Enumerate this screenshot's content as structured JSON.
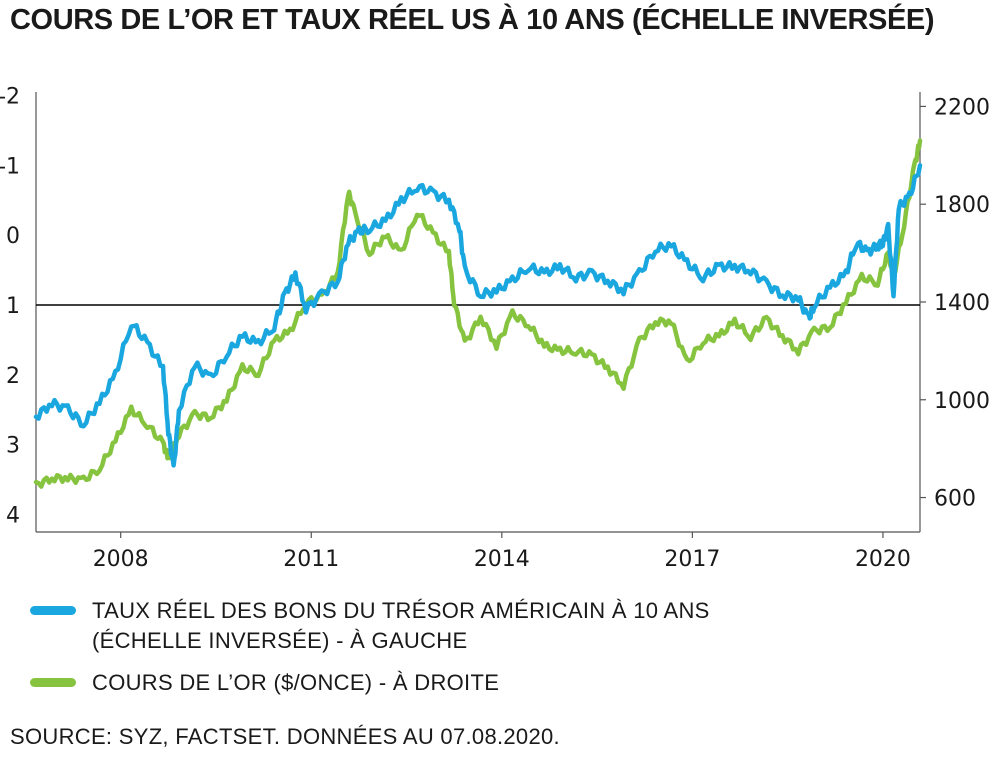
{
  "chart_data": {
    "type": "line",
    "title": "COURS DE L’OR ET TAUX RÉEL US À 10 ANS (ÉCHELLE INVERSÉE)",
    "x_ticks": [
      "2008",
      "2011",
      "2014",
      "2017",
      "2020"
    ],
    "x_range": [
      "2006-09",
      "2020-08"
    ],
    "left_axis": {
      "ticks": [
        "-2",
        "-1",
        "0",
        "1",
        "2",
        "3",
        "4"
      ],
      "range": [
        4.25,
        -2.05
      ],
      "inverted": true
    },
    "right_axis": {
      "ticks": [
        "2200",
        "1800",
        "1400",
        "1000",
        "600"
      ],
      "range": [
        459,
        2259
      ]
    },
    "reference_line": {
      "axis": "left",
      "value": 1,
      "color": "#000000"
    },
    "series": [
      {
        "name": "TAUX RÉEL DES BONS DU TRÉSOR AMÉRICAIN À 10 ANS (ÉCHELLE INVERSÉE) - À GAUCHE",
        "axis": "left",
        "color": "#1aa7e0",
        "points": [
          [
            "2006-09",
            2.6
          ],
          [
            "2006-12",
            2.4
          ],
          [
            "2007-03",
            2.5
          ],
          [
            "2007-06",
            2.7
          ],
          [
            "2007-09",
            2.4
          ],
          [
            "2007-12",
            2.0
          ],
          [
            "2008-03",
            1.25
          ],
          [
            "2008-06",
            1.55
          ],
          [
            "2008-09",
            1.9
          ],
          [
            "2008-10",
            2.8
          ],
          [
            "2008-11",
            3.35
          ],
          [
            "2008-12",
            2.5
          ],
          [
            "2009-03",
            1.85
          ],
          [
            "2009-06",
            2.05
          ],
          [
            "2009-09",
            1.7
          ],
          [
            "2009-12",
            1.45
          ],
          [
            "2010-03",
            1.55
          ],
          [
            "2010-06",
            1.3
          ],
          [
            "2010-08",
            0.85
          ],
          [
            "2010-10",
            0.55
          ],
          [
            "2010-12",
            1.05
          ],
          [
            "2011-03",
            0.85
          ],
          [
            "2011-06",
            0.65
          ],
          [
            "2011-08",
            0.1
          ],
          [
            "2011-10",
            -0.05
          ],
          [
            "2011-12",
            -0.1
          ],
          [
            "2012-03",
            -0.2
          ],
          [
            "2012-06",
            -0.5
          ],
          [
            "2012-09",
            -0.7
          ],
          [
            "2012-12",
            -0.6
          ],
          [
            "2013-03",
            -0.5
          ],
          [
            "2013-05",
            -0.1
          ],
          [
            "2013-06",
            0.5
          ],
          [
            "2013-09",
            0.85
          ],
          [
            "2013-12",
            0.8
          ],
          [
            "2014-03",
            0.65
          ],
          [
            "2014-06",
            0.45
          ],
          [
            "2014-09",
            0.55
          ],
          [
            "2014-12",
            0.45
          ],
          [
            "2015-03",
            0.6
          ],
          [
            "2015-06",
            0.55
          ],
          [
            "2015-09",
            0.65
          ],
          [
            "2015-12",
            0.8
          ],
          [
            "2016-03",
            0.55
          ],
          [
            "2016-06",
            0.2
          ],
          [
            "2016-09",
            0.15
          ],
          [
            "2016-12",
            0.4
          ],
          [
            "2017-03",
            0.6
          ],
          [
            "2017-06",
            0.45
          ],
          [
            "2017-09",
            0.45
          ],
          [
            "2017-12",
            0.5
          ],
          [
            "2018-03",
            0.7
          ],
          [
            "2018-06",
            0.85
          ],
          [
            "2018-09",
            0.9
          ],
          [
            "2018-11",
            1.2
          ],
          [
            "2018-12",
            1.0
          ],
          [
            "2019-03",
            0.75
          ],
          [
            "2019-06",
            0.55
          ],
          [
            "2019-08",
            0.1
          ],
          [
            "2019-10",
            0.25
          ],
          [
            "2019-12",
            0.15
          ],
          [
            "2020-01",
            0.1
          ],
          [
            "2020-02",
            -0.1
          ],
          [
            "2020-03",
            0.85
          ],
          [
            "2020-04",
            -0.4
          ],
          [
            "2020-06",
            -0.55
          ],
          [
            "2020-08",
            -1.0
          ]
        ]
      },
      {
        "name": "COURS DE L’OR ($/ONCE) - À DROITE",
        "axis": "right",
        "color": "#86c440",
        "points": [
          [
            "2006-09",
            650
          ],
          [
            "2006-12",
            680
          ],
          [
            "2007-03",
            680
          ],
          [
            "2007-06",
            670
          ],
          [
            "2007-09",
            720
          ],
          [
            "2007-12",
            830
          ],
          [
            "2008-03",
            960
          ],
          [
            "2008-06",
            900
          ],
          [
            "2008-09",
            820
          ],
          [
            "2008-10",
            760
          ],
          [
            "2008-12",
            860
          ],
          [
            "2009-03",
            940
          ],
          [
            "2009-06",
            930
          ],
          [
            "2009-09",
            1000
          ],
          [
            "2009-12",
            1130
          ],
          [
            "2010-03",
            1110
          ],
          [
            "2010-06",
            1240
          ],
          [
            "2010-09",
            1280
          ],
          [
            "2010-12",
            1400
          ],
          [
            "2011-03",
            1420
          ],
          [
            "2011-06",
            1520
          ],
          [
            "2011-08",
            1850
          ],
          [
            "2011-09",
            1780
          ],
          [
            "2011-12",
            1600
          ],
          [
            "2012-03",
            1670
          ],
          [
            "2012-06",
            1600
          ],
          [
            "2012-09",
            1770
          ],
          [
            "2012-12",
            1680
          ],
          [
            "2013-03",
            1600
          ],
          [
            "2013-04",
            1400
          ],
          [
            "2013-06",
            1230
          ],
          [
            "2013-09",
            1340
          ],
          [
            "2013-12",
            1220
          ],
          [
            "2014-03",
            1350
          ],
          [
            "2014-06",
            1310
          ],
          [
            "2014-09",
            1220
          ],
          [
            "2014-12",
            1200
          ],
          [
            "2015-03",
            1200
          ],
          [
            "2015-06",
            1180
          ],
          [
            "2015-09",
            1130
          ],
          [
            "2015-12",
            1060
          ],
          [
            "2016-03",
            1240
          ],
          [
            "2016-06",
            1320
          ],
          [
            "2016-09",
            1320
          ],
          [
            "2016-12",
            1150
          ],
          [
            "2017-03",
            1240
          ],
          [
            "2017-06",
            1260
          ],
          [
            "2017-09",
            1320
          ],
          [
            "2017-12",
            1260
          ],
          [
            "2018-03",
            1330
          ],
          [
            "2018-06",
            1260
          ],
          [
            "2018-09",
            1200
          ],
          [
            "2018-12",
            1280
          ],
          [
            "2019-03",
            1300
          ],
          [
            "2019-06",
            1400
          ],
          [
            "2019-09",
            1500
          ],
          [
            "2019-12",
            1480
          ],
          [
            "2020-02",
            1600
          ],
          [
            "2020-03",
            1500
          ],
          [
            "2020-05",
            1720
          ],
          [
            "2020-07",
            1960
          ],
          [
            "2020-08",
            2060
          ]
        ]
      }
    ],
    "legend_placement": "bottom-left",
    "grid": false
  },
  "legend": [
    {
      "line1": "TAUX RÉEL DES BONS DU TRÉSOR AMÉRICAIN À 10 ANS",
      "line2": "(ÉCHELLE INVERSÉE) - À GAUCHE",
      "color": "#1aa7e0"
    },
    {
      "line1": "COURS DE L’OR ($/ONCE) - À DROITE",
      "line2": "",
      "color": "#86c440"
    }
  ],
  "source": "SOURCE: SYZ, FACTSET. DONNÉES AU 07.08.2020."
}
